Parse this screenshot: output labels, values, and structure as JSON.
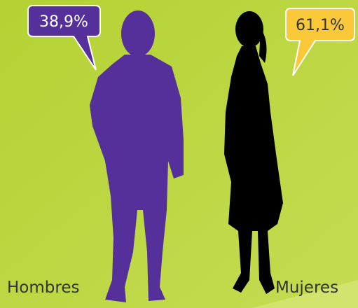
{
  "items": [
    {
      "label": "Hombres",
      "value": "38,9%"
    },
    {
      "label": "Mujeres",
      "value": "61,1%"
    }
  ]
}
